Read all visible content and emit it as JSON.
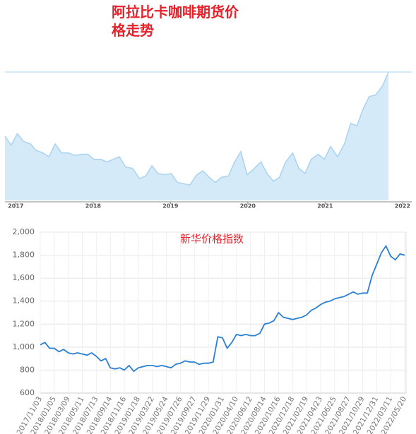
{
  "chart_data": [
    {
      "type": "area",
      "title": "阿拉比卡咖啡期货价格走势",
      "color": "#d4eaf8",
      "line_color": "#a9d3f0",
      "x": [
        2016.86,
        2016.94,
        2017.02,
        2017.1,
        2017.19,
        2017.26,
        2017.35,
        2017.43,
        2017.51,
        2017.59,
        2017.68,
        2017.77,
        2017.85,
        2017.93,
        2018.01,
        2018.1,
        2018.18,
        2018.26,
        2018.34,
        2018.42,
        2018.51,
        2018.6,
        2018.68,
        2018.76,
        2018.84,
        2018.93,
        2019.01,
        2019.09,
        2019.17,
        2019.25,
        2019.34,
        2019.42,
        2019.5,
        2019.58,
        2019.66,
        2019.75,
        2019.83,
        2019.91,
        2019.99,
        2020.07,
        2020.17,
        2020.25,
        2020.33,
        2020.41,
        2020.49,
        2020.58,
        2020.66,
        2020.74,
        2020.82,
        2020.91,
        2020.99,
        2021.07,
        2021.16,
        2021.25,
        2021.33,
        2021.41,
        2021.49,
        2021.57,
        2021.65,
        2021.74,
        2021.82
      ],
      "values": [
        50,
        43,
        52,
        46,
        44,
        39,
        37,
        34,
        44,
        37,
        37,
        35,
        36,
        36,
        32,
        32,
        30,
        32,
        34,
        26,
        25,
        17,
        19,
        27,
        21,
        20,
        21,
        14,
        13,
        12,
        20,
        23,
        18,
        14,
        18,
        19,
        30,
        38,
        20,
        24,
        30,
        21,
        15,
        18,
        30,
        37,
        25,
        21,
        32,
        36,
        32,
        42,
        34,
        44,
        60,
        58,
        71,
        81,
        82,
        89,
        100
      ],
      "xlim": [
        2016.86,
        2022.12
      ],
      "ylim": [
        0,
        100
      ],
      "xticks": [
        2017,
        2018,
        2019,
        2020,
        2021,
        2022
      ]
    },
    {
      "type": "line",
      "title": "新华价格指数",
      "color": "#2b80d6",
      "categories": [
        "2017/11/03",
        null,
        null,
        "2018/01/05",
        null,
        null,
        "2018/03/09",
        null,
        null,
        "2018/05/11",
        null,
        null,
        "2018/07/13",
        null,
        null,
        "2018/09/14",
        null,
        null,
        "2018/11/16",
        null,
        null,
        "2019/01/18",
        null,
        null,
        "2019/03/22",
        null,
        null,
        "2019/05/24",
        null,
        null,
        "2019/07/26",
        null,
        null,
        "2019/09/27",
        null,
        null,
        "2019/11/29",
        null,
        null,
        "2020/01/31",
        null,
        null,
        "2020/04/10",
        null,
        null,
        "2020/06/12",
        null,
        null,
        "2020/08/14",
        null,
        null,
        "2020/10/16",
        null,
        null,
        "2020/12/18",
        null,
        null,
        "2021/02/19",
        null,
        null,
        "2021/04/23",
        null,
        null,
        "2021/06/25",
        null,
        null,
        "2021/08/27",
        null,
        null,
        "2021/10/29",
        null,
        null,
        "2021/12/31",
        null,
        null,
        "2022/03/11",
        null,
        null,
        "2022/05/20"
      ],
      "values": [
        1020,
        1040,
        990,
        990,
        960,
        980,
        950,
        940,
        950,
        940,
        930,
        950,
        920,
        880,
        900,
        820,
        810,
        820,
        800,
        840,
        790,
        820,
        830,
        840,
        840,
        830,
        840,
        830,
        820,
        850,
        860,
        880,
        870,
        870,
        850,
        860,
        860,
        870,
        1090,
        1080,
        990,
        1040,
        1110,
        1100,
        1110,
        1100,
        1100,
        1120,
        1200,
        1210,
        1230,
        1300,
        1260,
        1250,
        1240,
        1250,
        1260,
        1280,
        1320,
        1340,
        1370,
        1390,
        1400,
        1420,
        1430,
        1440,
        1460,
        1480,
        1460,
        1470,
        1470,
        1620,
        1720,
        1820,
        1880,
        1790,
        1760,
        1810,
        1800
      ],
      "ylim": [
        600,
        2000
      ],
      "yticks": [
        600,
        800,
        {
          "value": 1000,
          "label": "1,000"
        },
        {
          "value": 1200,
          "label": "1,200"
        },
        {
          "value": 1400,
          "label": "1,400"
        },
        {
          "value": 1600,
          "label": "1,600"
        },
        {
          "value": 1800,
          "label": "1,800"
        },
        {
          "value": 2000,
          "label": "2,000"
        }
      ],
      "grid": true
    }
  ]
}
